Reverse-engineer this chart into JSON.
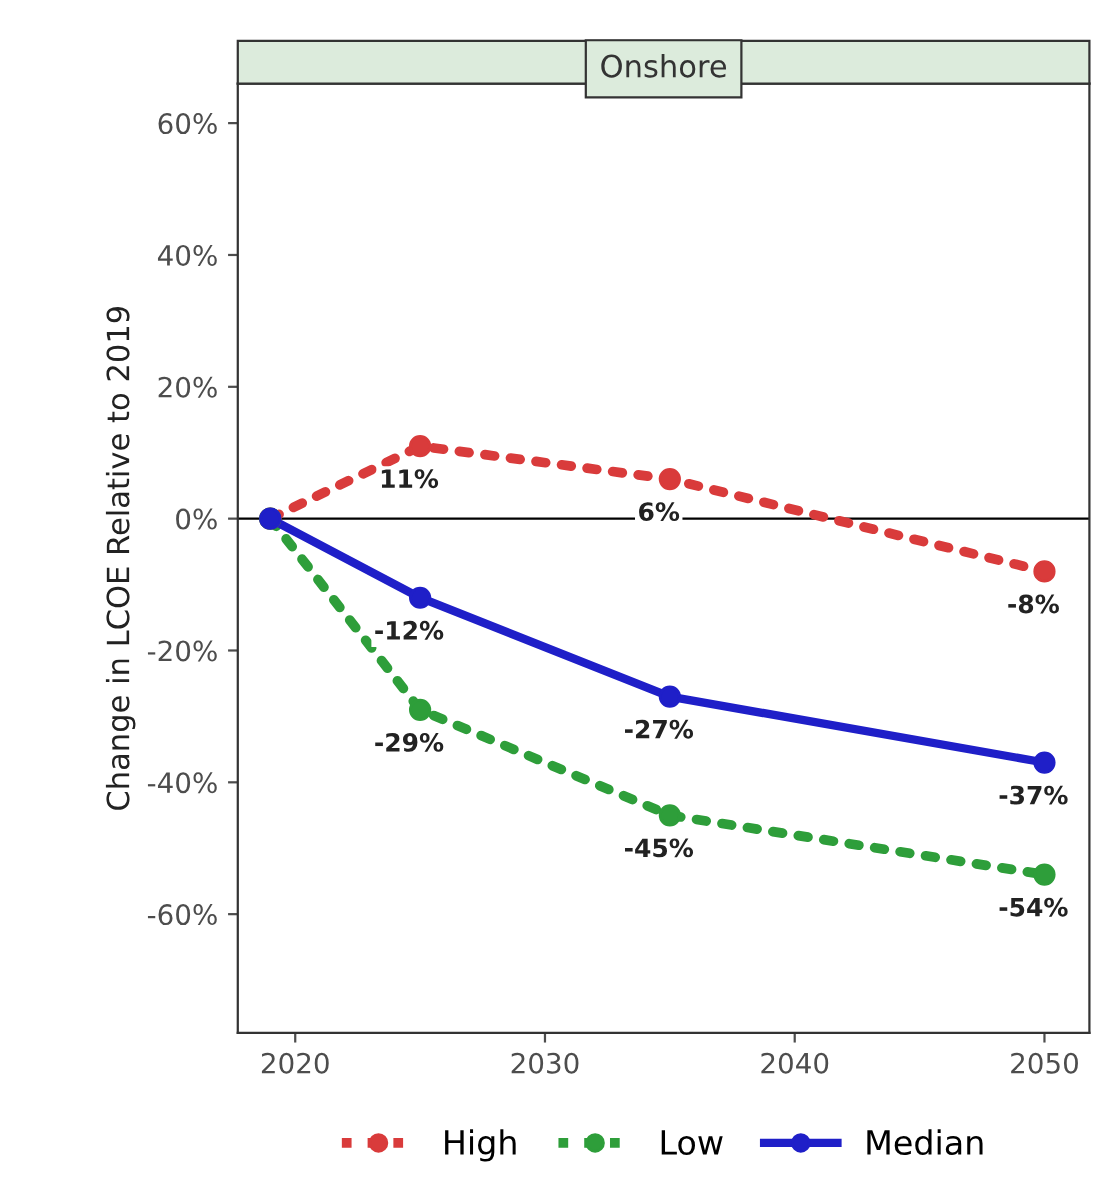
{
  "chart_data": {
    "type": "line",
    "title": "Onshore",
    "ylabel": "Change in LCOE Relative to 2019",
    "x": [
      2019,
      2025,
      2035,
      2050
    ],
    "xlim": [
      2017.7,
      2051.8
    ],
    "xticks": [
      2020,
      2030,
      2040,
      2050
    ],
    "ylim": [
      -78,
      66
    ],
    "yticks": [
      {
        "value": -60,
        "label": "-60%"
      },
      {
        "value": -40,
        "label": "-40%"
      },
      {
        "value": -20,
        "label": "-20%"
      },
      {
        "value": 0,
        "label": "0%"
      },
      {
        "value": 20,
        "label": "20%"
      },
      {
        "value": 40,
        "label": "40%"
      },
      {
        "value": 60,
        "label": "60%"
      }
    ],
    "series": [
      {
        "name": "High",
        "color": "#d93b3b",
        "line_style": "dotted",
        "values": [
          0,
          11,
          6,
          -8
        ],
        "value_labels": [
          null,
          "11%",
          "6%",
          "-8%"
        ]
      },
      {
        "name": "Low",
        "color": "#2e9e3a",
        "line_style": "dotted",
        "values": [
          0,
          -29,
          -45,
          -54
        ],
        "value_labels": [
          null,
          "-29%",
          "-45%",
          "-54%"
        ]
      },
      {
        "name": "Median",
        "color": "#1f1fc8",
        "line_style": "solid",
        "values": [
          0,
          -12,
          -27,
          -37
        ],
        "value_labels": [
          null,
          "-12%",
          "-27%",
          "-37%"
        ]
      }
    ],
    "ref_lines": [
      {
        "axis": "y",
        "value": 0,
        "color": "#000000"
      }
    ],
    "marker": "circle",
    "grid": false,
    "legend": "bottom"
  }
}
